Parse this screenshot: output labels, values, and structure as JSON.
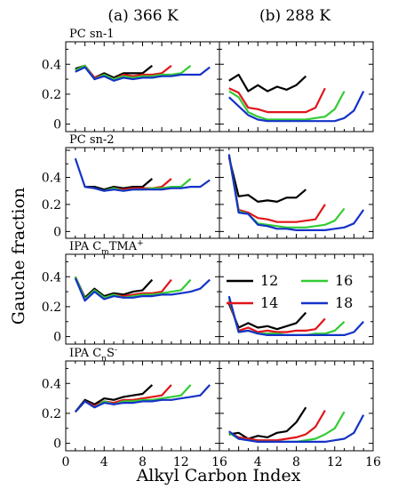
{
  "figure": {
    "col_titles": [
      "(a) 366 K",
      "(b) 288 K"
    ],
    "ylabel": "Gauche fraction",
    "xlabel": "Alkyl Carbon Index"
  },
  "colors": {
    "12": "#000000",
    "14": "#e0151a",
    "16": "#33cc33",
    "18": "#1432c8"
  },
  "chart_data": [
    {
      "type": "line",
      "title": "PC sn-1",
      "condition": "366 K",
      "xlim": [
        0,
        16
      ],
      "ylim": [
        -0.05,
        0.55
      ],
      "xticks": [],
      "yticks": [
        0,
        0.2,
        0.4
      ],
      "series": [
        {
          "name": "12",
          "x": [
            1,
            2,
            3,
            4,
            5,
            6,
            7,
            8,
            9
          ],
          "y": [
            0.37,
            0.39,
            0.31,
            0.34,
            0.31,
            0.34,
            0.34,
            0.34,
            0.39
          ]
        },
        {
          "name": "14",
          "x": [
            1,
            2,
            3,
            4,
            5,
            6,
            7,
            8,
            9,
            10,
            11
          ],
          "y": [
            0.36,
            0.39,
            0.31,
            0.33,
            0.3,
            0.33,
            0.32,
            0.33,
            0.33,
            0.34,
            0.39
          ]
        },
        {
          "name": "16",
          "x": [
            1,
            2,
            3,
            4,
            5,
            6,
            7,
            8,
            9,
            10,
            11,
            12,
            13
          ],
          "y": [
            0.36,
            0.39,
            0.3,
            0.33,
            0.3,
            0.32,
            0.31,
            0.32,
            0.32,
            0.33,
            0.33,
            0.34,
            0.39
          ]
        },
        {
          "name": "18",
          "x": [
            1,
            2,
            3,
            4,
            5,
            6,
            7,
            8,
            9,
            10,
            11,
            12,
            13,
            14,
            15
          ],
          "y": [
            0.35,
            0.38,
            0.3,
            0.32,
            0.29,
            0.31,
            0.3,
            0.31,
            0.31,
            0.32,
            0.32,
            0.33,
            0.33,
            0.33,
            0.38
          ]
        }
      ]
    },
    {
      "type": "line",
      "title": "",
      "condition": "288 K",
      "xlim": [
        0,
        16
      ],
      "ylim": [
        -0.05,
        0.55
      ],
      "xticks": [],
      "yticks": [],
      "series": [
        {
          "name": "12",
          "x": [
            1,
            2,
            3,
            4,
            5,
            6,
            7,
            8,
            9
          ],
          "y": [
            0.29,
            0.33,
            0.22,
            0.26,
            0.22,
            0.25,
            0.23,
            0.26,
            0.32
          ]
        },
        {
          "name": "14",
          "x": [
            1,
            2,
            3,
            4,
            5,
            6,
            7,
            8,
            9,
            10,
            11
          ],
          "y": [
            0.24,
            0.21,
            0.11,
            0.1,
            0.08,
            0.08,
            0.08,
            0.08,
            0.08,
            0.11,
            0.24
          ]
        },
        {
          "name": "16",
          "x": [
            1,
            2,
            3,
            4,
            5,
            6,
            7,
            8,
            9,
            10,
            11,
            12,
            13
          ],
          "y": [
            0.22,
            0.18,
            0.08,
            0.05,
            0.03,
            0.03,
            0.03,
            0.03,
            0.03,
            0.04,
            0.05,
            0.1,
            0.22
          ]
        },
        {
          "name": "18",
          "x": [
            1,
            2,
            3,
            4,
            5,
            6,
            7,
            8,
            9,
            10,
            11,
            12,
            13,
            14,
            15
          ],
          "y": [
            0.18,
            0.12,
            0.06,
            0.03,
            0.02,
            0.02,
            0.02,
            0.02,
            0.02,
            0.02,
            0.02,
            0.02,
            0.04,
            0.09,
            0.22
          ]
        }
      ]
    },
    {
      "type": "line",
      "title": "PC sn-2",
      "condition": "366 K",
      "xlim": [
        0,
        16
      ],
      "ylim": [
        -0.05,
        0.62
      ],
      "xticks": [],
      "yticks": [
        0,
        0.2,
        0.4
      ],
      "series": [
        {
          "name": "12",
          "x": [
            2,
            3,
            4,
            5,
            6,
            7,
            8,
            9
          ],
          "y": [
            0.33,
            0.33,
            0.31,
            0.33,
            0.32,
            0.33,
            0.33,
            0.39
          ]
        },
        {
          "name": "14",
          "x": [
            2,
            3,
            4,
            5,
            6,
            7,
            8,
            9,
            10,
            11
          ],
          "y": [
            0.33,
            0.32,
            0.3,
            0.32,
            0.31,
            0.32,
            0.32,
            0.32,
            0.33,
            0.39
          ]
        },
        {
          "name": "16",
          "x": [
            2,
            3,
            4,
            5,
            6,
            7,
            8,
            9,
            10,
            11,
            12,
            13
          ],
          "y": [
            0.33,
            0.32,
            0.3,
            0.32,
            0.3,
            0.31,
            0.31,
            0.32,
            0.32,
            0.33,
            0.33,
            0.39
          ]
        },
        {
          "name": "18",
          "x": [
            1,
            2,
            3,
            4,
            5,
            6,
            7,
            8,
            9,
            10,
            11,
            12,
            13,
            14,
            15
          ],
          "y": [
            0.54,
            0.33,
            0.32,
            0.3,
            0.31,
            0.3,
            0.31,
            0.31,
            0.31,
            0.31,
            0.32,
            0.32,
            0.33,
            0.33,
            0.38
          ]
        }
      ]
    },
    {
      "type": "line",
      "title": "",
      "condition": "288 K",
      "xlim": [
        0,
        16
      ],
      "ylim": [
        -0.05,
        0.62
      ],
      "xticks": [],
      "yticks": [],
      "series": [
        {
          "name": "12",
          "x": [
            1,
            2,
            3,
            4,
            5,
            6,
            7,
            8,
            9
          ],
          "y": [
            0.55,
            0.26,
            0.27,
            0.22,
            0.23,
            0.22,
            0.25,
            0.25,
            0.31
          ]
        },
        {
          "name": "14",
          "x": [
            1,
            2,
            3,
            4,
            5,
            6,
            7,
            8,
            9,
            10,
            11
          ],
          "y": [
            0.56,
            0.16,
            0.14,
            0.1,
            0.09,
            0.07,
            0.07,
            0.07,
            0.08,
            0.09,
            0.2
          ]
        },
        {
          "name": "16",
          "x": [
            1,
            2,
            3,
            4,
            5,
            6,
            7,
            8,
            9,
            10,
            11,
            12,
            13
          ],
          "y": [
            0.57,
            0.15,
            0.13,
            0.06,
            0.05,
            0.04,
            0.03,
            0.03,
            0.03,
            0.04,
            0.05,
            0.08,
            0.17
          ]
        },
        {
          "name": "18",
          "x": [
            1,
            2,
            3,
            4,
            5,
            6,
            7,
            8,
            9,
            10,
            11,
            12,
            13,
            14,
            15
          ],
          "y": [
            0.57,
            0.14,
            0.13,
            0.05,
            0.04,
            0.02,
            0.02,
            0.01,
            0.01,
            0.01,
            0.01,
            0.02,
            0.03,
            0.06,
            0.16
          ]
        }
      ]
    },
    {
      "type": "line",
      "title": "IPA C",
      "title_sub": "m",
      "title_rest": "TMA",
      "title_sup": "+",
      "condition": "366 K",
      "xlim": [
        0,
        16
      ],
      "ylim": [
        -0.05,
        0.55
      ],
      "xticks": [],
      "yticks": [
        0,
        0.2,
        0.4
      ],
      "series": [
        {
          "name": "12",
          "x": [
            1,
            2,
            3,
            4,
            5,
            6,
            7,
            8,
            9
          ],
          "y": [
            0.4,
            0.26,
            0.32,
            0.27,
            0.29,
            0.28,
            0.3,
            0.31,
            0.38
          ]
        },
        {
          "name": "14",
          "x": [
            1,
            2,
            3,
            4,
            5,
            6,
            7,
            8,
            9,
            10,
            11
          ],
          "y": [
            0.4,
            0.25,
            0.31,
            0.26,
            0.28,
            0.27,
            0.28,
            0.29,
            0.29,
            0.3,
            0.38
          ]
        },
        {
          "name": "16",
          "x": [
            1,
            2,
            3,
            4,
            5,
            6,
            7,
            8,
            9,
            10,
            11,
            12,
            13
          ],
          "y": [
            0.4,
            0.25,
            0.31,
            0.26,
            0.28,
            0.26,
            0.27,
            0.28,
            0.28,
            0.29,
            0.3,
            0.31,
            0.38
          ]
        },
        {
          "name": "18",
          "x": [
            1,
            2,
            3,
            4,
            5,
            6,
            7,
            8,
            9,
            10,
            11,
            12,
            13,
            14,
            15
          ],
          "y": [
            0.39,
            0.24,
            0.3,
            0.25,
            0.27,
            0.26,
            0.26,
            0.27,
            0.27,
            0.28,
            0.28,
            0.29,
            0.3,
            0.32,
            0.38
          ]
        }
      ]
    },
    {
      "type": "line",
      "title": "",
      "condition": "288 K",
      "xlim": [
        0,
        16
      ],
      "ylim": [
        -0.05,
        0.55
      ],
      "xticks": [],
      "yticks": [],
      "legend": {
        "placement": "upper-center",
        "entries": [
          "12",
          "14",
          "16",
          "18"
        ]
      },
      "series": [
        {
          "name": "12",
          "x": [
            1,
            2,
            3,
            4,
            5,
            6,
            7,
            8,
            9
          ],
          "y": [
            0.22,
            0.06,
            0.09,
            0.06,
            0.07,
            0.05,
            0.07,
            0.09,
            0.16
          ]
        },
        {
          "name": "14",
          "x": [
            1,
            2,
            3,
            4,
            5,
            6,
            7,
            8,
            9,
            10,
            11
          ],
          "y": [
            0.24,
            0.04,
            0.06,
            0.03,
            0.04,
            0.03,
            0.03,
            0.04,
            0.04,
            0.05,
            0.12
          ]
        },
        {
          "name": "16",
          "x": [
            1,
            2,
            3,
            4,
            5,
            6,
            7,
            8,
            9,
            10,
            11,
            12,
            13
          ],
          "y": [
            0.26,
            0.03,
            0.04,
            0.02,
            0.02,
            0.02,
            0.01,
            0.01,
            0.01,
            0.02,
            0.02,
            0.04,
            0.1
          ]
        },
        {
          "name": "18",
          "x": [
            1,
            2,
            3,
            4,
            5,
            6,
            7,
            8,
            9,
            10,
            11,
            12,
            13,
            14,
            15
          ],
          "y": [
            0.27,
            0.03,
            0.04,
            0.02,
            0.01,
            0.01,
            0.01,
            0.01,
            0.01,
            0.01,
            0.01,
            0.01,
            0.01,
            0.03,
            0.1
          ]
        }
      ]
    },
    {
      "type": "line",
      "title": "IPA C",
      "title_sub": "n",
      "title_rest": "S",
      "title_sup": "-",
      "condition": "366 K",
      "xlim": [
        0,
        16
      ],
      "ylim": [
        -0.05,
        0.55
      ],
      "xticks": [
        0,
        4,
        8,
        12,
        16
      ],
      "yticks": [
        0,
        0.2,
        0.4
      ],
      "series": [
        {
          "name": "12",
          "x": [
            1,
            2,
            3,
            4,
            5,
            6,
            7,
            8,
            9
          ],
          "y": [
            0.21,
            0.29,
            0.26,
            0.3,
            0.29,
            0.31,
            0.32,
            0.33,
            0.39
          ]
        },
        {
          "name": "14",
          "x": [
            1,
            2,
            3,
            4,
            5,
            6,
            7,
            8,
            9,
            10,
            11
          ],
          "y": [
            0.21,
            0.28,
            0.25,
            0.28,
            0.27,
            0.29,
            0.29,
            0.3,
            0.31,
            0.32,
            0.39
          ]
        },
        {
          "name": "16",
          "x": [
            1,
            2,
            3,
            4,
            5,
            6,
            7,
            8,
            9,
            10,
            11,
            12,
            13
          ],
          "y": [
            0.21,
            0.28,
            0.24,
            0.28,
            0.26,
            0.28,
            0.28,
            0.29,
            0.29,
            0.3,
            0.31,
            0.32,
            0.39
          ]
        },
        {
          "name": "18",
          "x": [
            1,
            2,
            3,
            4,
            5,
            6,
            7,
            8,
            9,
            10,
            11,
            12,
            13,
            14,
            15
          ],
          "y": [
            0.21,
            0.28,
            0.24,
            0.27,
            0.26,
            0.27,
            0.27,
            0.28,
            0.28,
            0.29,
            0.29,
            0.3,
            0.31,
            0.32,
            0.39
          ]
        }
      ]
    },
    {
      "type": "line",
      "title": "",
      "condition": "288 K",
      "xlim": [
        0,
        16
      ],
      "ylim": [
        -0.05,
        0.55
      ],
      "xticks": [
        4,
        8,
        12,
        16
      ],
      "yticks": [],
      "series": [
        {
          "name": "12",
          "x": [
            1,
            2,
            3,
            4,
            5,
            6,
            7,
            8,
            9
          ],
          "y": [
            0.06,
            0.07,
            0.03,
            0.05,
            0.04,
            0.07,
            0.08,
            0.14,
            0.24
          ]
        },
        {
          "name": "14",
          "x": [
            1,
            2,
            3,
            4,
            5,
            6,
            7,
            8,
            9,
            10,
            11
          ],
          "y": [
            0.07,
            0.04,
            0.03,
            0.02,
            0.02,
            0.02,
            0.03,
            0.04,
            0.06,
            0.11,
            0.22
          ]
        },
        {
          "name": "16",
          "x": [
            1,
            2,
            3,
            4,
            5,
            6,
            7,
            8,
            9,
            10,
            11,
            12,
            13
          ],
          "y": [
            0.07,
            0.03,
            0.02,
            0.01,
            0.01,
            0.01,
            0.01,
            0.01,
            0.02,
            0.03,
            0.06,
            0.1,
            0.21
          ]
        },
        {
          "name": "18",
          "x": [
            1,
            2,
            3,
            4,
            5,
            6,
            7,
            8,
            9,
            10,
            11,
            12,
            13,
            14,
            15
          ],
          "y": [
            0.08,
            0.03,
            0.02,
            0.01,
            0.01,
            0.01,
            0.01,
            0.01,
            0.01,
            0.01,
            0.01,
            0.02,
            0.03,
            0.07,
            0.19
          ]
        }
      ]
    }
  ]
}
